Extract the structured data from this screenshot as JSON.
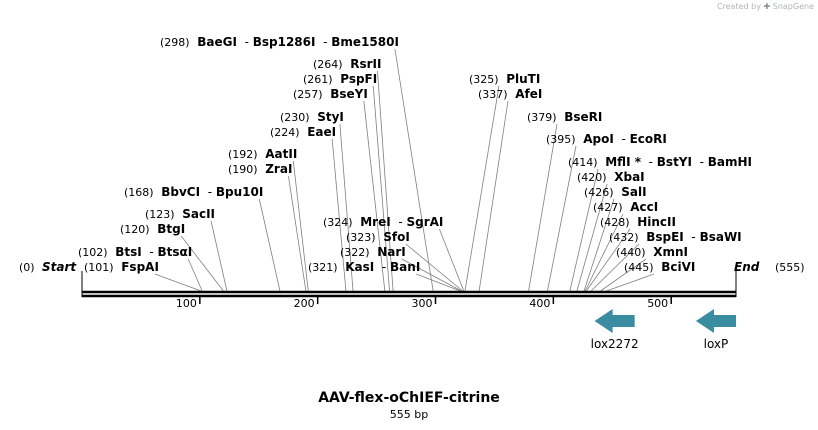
{
  "header": {
    "credit_prefix": "Created by",
    "credit_brand": "SnapGene"
  },
  "sequence": {
    "name": "AAV-flex-oChIEF-citrine",
    "length_label": "555 bp",
    "length": 555,
    "start_label": "Start",
    "start_pos": "(0)",
    "end_label": "End",
    "end_pos": "(555)"
  },
  "axis": {
    "ticks": [
      100,
      200,
      300,
      400,
      500
    ]
  },
  "enzymes": [
    {
      "pos": "(102)",
      "names": [
        "BtsI",
        "BtsαI"
      ],
      "site": 102
    },
    {
      "pos": "(101)",
      "names": [
        "FspAI"
      ],
      "site": 101
    },
    {
      "pos": "(123)",
      "names": [
        "SacII"
      ],
      "site": 123
    },
    {
      "pos": "(120)",
      "names": [
        "BtgI"
      ],
      "site": 120
    },
    {
      "pos": "(168)",
      "names": [
        "BbvCI",
        "Bpu10I"
      ],
      "site": 168
    },
    {
      "pos": "(192)",
      "names": [
        "AatII"
      ],
      "site": 192
    },
    {
      "pos": "(190)",
      "names": [
        "ZraI"
      ],
      "site": 190
    },
    {
      "pos": "(230)",
      "names": [
        "StyI"
      ],
      "site": 230
    },
    {
      "pos": "(224)",
      "names": [
        "EaeI"
      ],
      "site": 224
    },
    {
      "pos": "(264)",
      "names": [
        "RsrII"
      ],
      "site": 264
    },
    {
      "pos": "(261)",
      "names": [
        "PspFI"
      ],
      "site": 261
    },
    {
      "pos": "(257)",
      "names": [
        "BseYI"
      ],
      "site": 257
    },
    {
      "pos": "(298)",
      "names": [
        "BaeGI",
        "Bsp1286I",
        "Bme1580I"
      ],
      "site": 298
    },
    {
      "pos": "(324)",
      "names": [
        "MreI",
        "SgrAI"
      ],
      "site": 324
    },
    {
      "pos": "(323)",
      "names": [
        "SfoI"
      ],
      "site": 323
    },
    {
      "pos": "(322)",
      "names": [
        "NarI"
      ],
      "site": 322
    },
    {
      "pos": "(321)",
      "names": [
        "KasI",
        "BanI"
      ],
      "site": 321
    },
    {
      "pos": "(325)",
      "names": [
        "PluTI"
      ],
      "site": 325
    },
    {
      "pos": "(337)",
      "names": [
        "AfeI"
      ],
      "site": 337
    },
    {
      "pos": "(379)",
      "names": [
        "BseRI"
      ],
      "site": 379
    },
    {
      "pos": "(395)",
      "names": [
        "ApoI",
        "EcoRI"
      ],
      "site": 395
    },
    {
      "pos": "(414)",
      "names": [
        "MflI *",
        "BstYI",
        "BamHI"
      ],
      "site": 414
    },
    {
      "pos": "(420)",
      "names": [
        "XbaI"
      ],
      "site": 420
    },
    {
      "pos": "(426)",
      "names": [
        "SalI"
      ],
      "site": 426
    },
    {
      "pos": "(427)",
      "names": [
        "AccI"
      ],
      "site": 427
    },
    {
      "pos": "(428)",
      "names": [
        "HincII"
      ],
      "site": 428
    },
    {
      "pos": "(432)",
      "names": [
        "BspEI",
        "BsaWI"
      ],
      "site": 432
    },
    {
      "pos": "(440)",
      "names": [
        "XmnI"
      ],
      "site": 440
    },
    {
      "pos": "(445)",
      "names": [
        "BciVI"
      ],
      "site": 445
    }
  ],
  "features": [
    {
      "name": "lox2272",
      "start": 435,
      "end": 469,
      "direction": "reverse"
    },
    {
      "name": "loxP",
      "start": 521,
      "end": 555,
      "direction": "reverse"
    }
  ],
  "colors": {
    "feature": "#3a8ca0",
    "backbone": "#000000",
    "leader": "#7f7f7f"
  }
}
